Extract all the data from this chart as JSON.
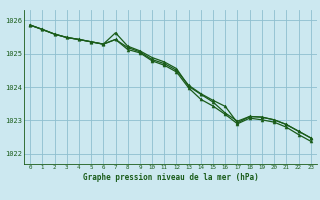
{
  "title": "Graphe pression niveau de la mer (hPa)",
  "background_color": "#cce8f0",
  "grid_color": "#8fbfcf",
  "line_color": "#1a5c1a",
  "marker_color": "#1a5c1a",
  "xlim": [
    -0.5,
    23.5
  ],
  "ylim": [
    1021.7,
    1026.3
  ],
  "yticks": [
    1022,
    1023,
    1024,
    1025,
    1026
  ],
  "xticks": [
    0,
    1,
    2,
    3,
    4,
    5,
    6,
    7,
    8,
    9,
    10,
    11,
    12,
    13,
    14,
    15,
    16,
    17,
    18,
    19,
    20,
    21,
    22,
    23
  ],
  "series1": {
    "x": [
      0,
      1,
      2,
      3,
      4,
      5,
      6,
      7,
      8,
      9,
      10,
      11,
      12,
      13,
      14,
      15,
      16,
      17,
      18,
      19,
      20,
      21,
      22,
      23
    ],
    "y": [
      1025.85,
      1025.72,
      1025.58,
      1025.48,
      1025.42,
      1025.35,
      1025.28,
      1025.62,
      1025.22,
      1025.08,
      1024.88,
      1024.75,
      1024.55,
      1024.02,
      1023.78,
      1023.55,
      1023.22,
      1022.98,
      1023.12,
      1023.1,
      1023.02,
      1022.88,
      1022.68,
      1022.48
    ]
  },
  "series2": {
    "x": [
      0,
      1,
      2,
      3,
      4,
      5,
      6,
      7,
      8,
      9,
      10,
      11,
      12,
      13,
      14,
      15,
      16,
      17,
      18,
      19,
      20,
      21,
      22,
      23
    ],
    "y": [
      1025.85,
      1025.72,
      1025.58,
      1025.48,
      1025.42,
      1025.35,
      1025.28,
      1025.42,
      1025.18,
      1025.05,
      1024.82,
      1024.7,
      1024.5,
      1024.05,
      1023.8,
      1023.6,
      1023.42,
      1022.93,
      1023.12,
      1023.1,
      1023.02,
      1022.88,
      1022.68,
      1022.48
    ]
  },
  "series3": {
    "x": [
      0,
      1,
      2,
      3,
      4,
      5,
      6,
      7,
      8,
      9,
      10,
      11,
      12,
      13,
      14,
      15,
      16,
      17,
      18,
      19,
      20,
      21,
      22,
      23
    ],
    "y": [
      1025.85,
      1025.72,
      1025.58,
      1025.48,
      1025.42,
      1025.35,
      1025.28,
      1025.42,
      1025.12,
      1025.02,
      1024.78,
      1024.65,
      1024.45,
      1023.97,
      1023.63,
      1023.43,
      1023.18,
      1022.9,
      1023.07,
      1023.02,
      1022.95,
      1022.8,
      1022.58,
      1022.38
    ]
  }
}
